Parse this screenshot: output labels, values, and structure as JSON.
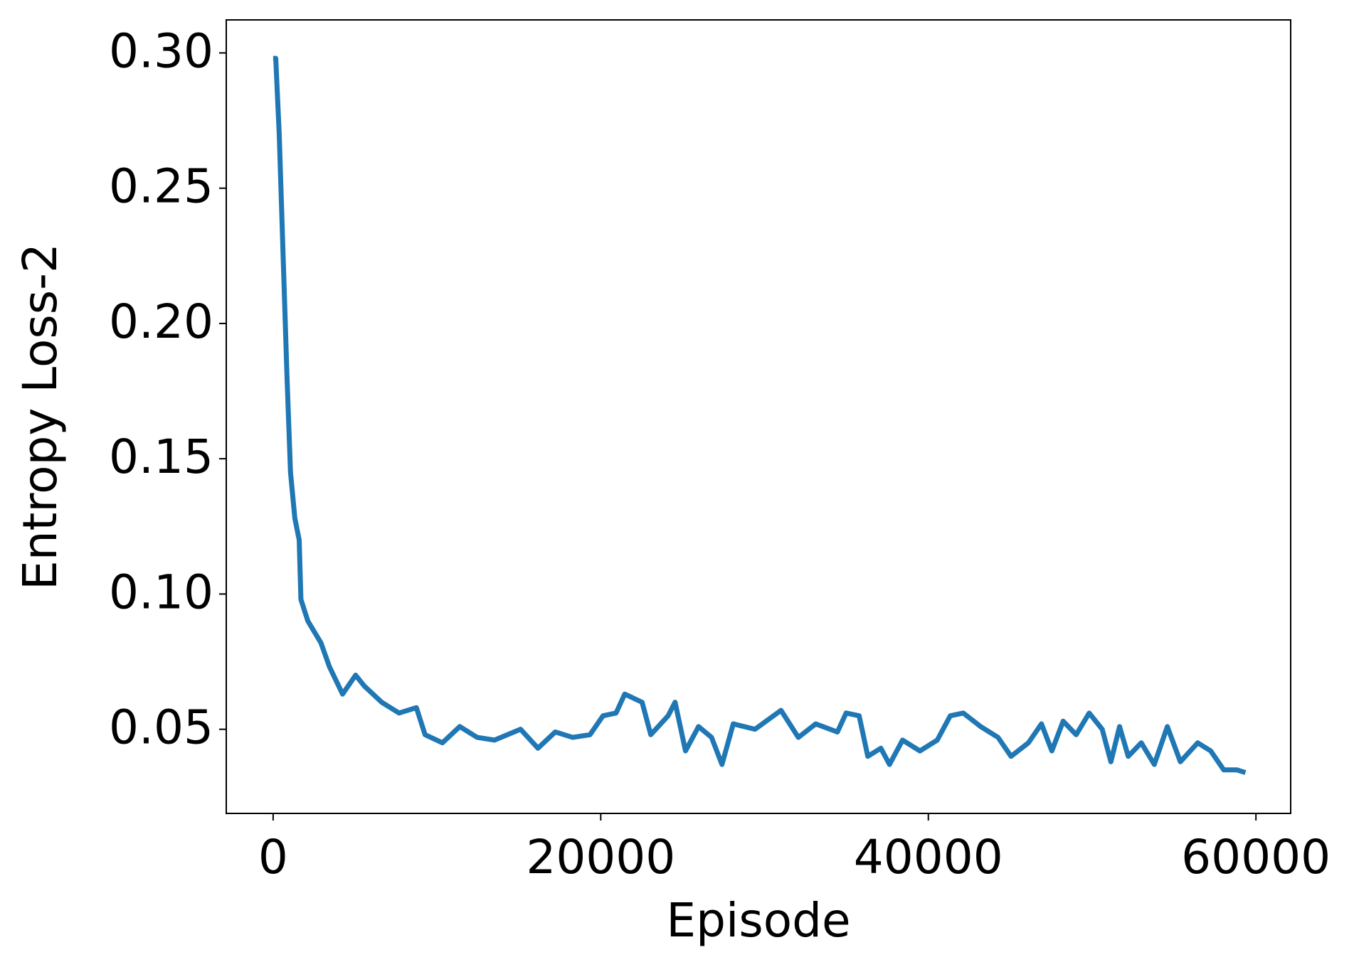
{
  "chart_data": {
    "type": "line",
    "xlabel": "Episode",
    "ylabel": "Entropy Loss-2",
    "x": [
      0,
      159,
      371,
      530,
      689,
      848,
      1060,
      1325,
      1590,
      1696,
      2120,
      2915,
      3445,
      4240,
      5035,
      5565,
      6625,
      7685,
      8745,
      9275,
      10335,
      11395,
      12455,
      13515,
      15105,
      16165,
      17225,
      18285,
      19345,
      20140,
      20935,
      21465,
      22525,
      23055,
      24115,
      24539,
      25175,
      25970,
      26765,
      27401,
      28090,
      29415,
      31005,
      32065,
      33125,
      34450,
      34980,
      35775,
      36305,
      37100,
      37630,
      38425,
      39485,
      40545,
      41340,
      42135,
      43195,
      44255,
      45050,
      46110,
      46905,
      47541,
      48230,
      49025,
      49820,
      50615,
      51145,
      51675,
      52205,
      53000,
      53795,
      54590,
      55385,
      56445,
      57240,
      58035,
      58830,
      59360
    ],
    "series": [
      {
        "color": "#1f77b4",
        "values": [
          0.298,
          0.298,
          0.27,
          0.24,
          0.21,
          0.18,
          0.145,
          0.128,
          0.12,
          0.098,
          0.09,
          0.082,
          0.073,
          0.063,
          0.07,
          0.066,
          0.06,
          0.056,
          0.058,
          0.048,
          0.045,
          0.051,
          0.047,
          0.046,
          0.05,
          0.043,
          0.049,
          0.047,
          0.048,
          0.055,
          0.056,
          0.063,
          0.06,
          0.048,
          0.055,
          0.06,
          0.042,
          0.051,
          0.047,
          0.037,
          0.052,
          0.05,
          0.057,
          0.047,
          0.052,
          0.049,
          0.056,
          0.055,
          0.04,
          0.043,
          0.037,
          0.046,
          0.042,
          0.046,
          0.055,
          0.056,
          0.051,
          0.047,
          0.04,
          0.045,
          0.052,
          0.042,
          0.053,
          0.048,
          0.056,
          0.05,
          0.038,
          0.051,
          0.04,
          0.045,
          0.037,
          0.051,
          0.038,
          0.045,
          0.042,
          0.035,
          0.035,
          0.034
        ]
      }
    ],
    "xlim": [
      -2862,
      62121
    ],
    "ylim": [
      0.0189,
      0.3122
    ],
    "xticks": [
      0,
      20000,
      40000,
      60000
    ],
    "yticks": [
      {
        "value": 0.05,
        "label": "0.05"
      },
      {
        "value": 0.1,
        "label": "0.10"
      },
      0.15,
      {
        "value": 0.2,
        "label": "0.20"
      },
      0.25,
      {
        "value": 0.3,
        "label": "0.30"
      }
    ]
  }
}
